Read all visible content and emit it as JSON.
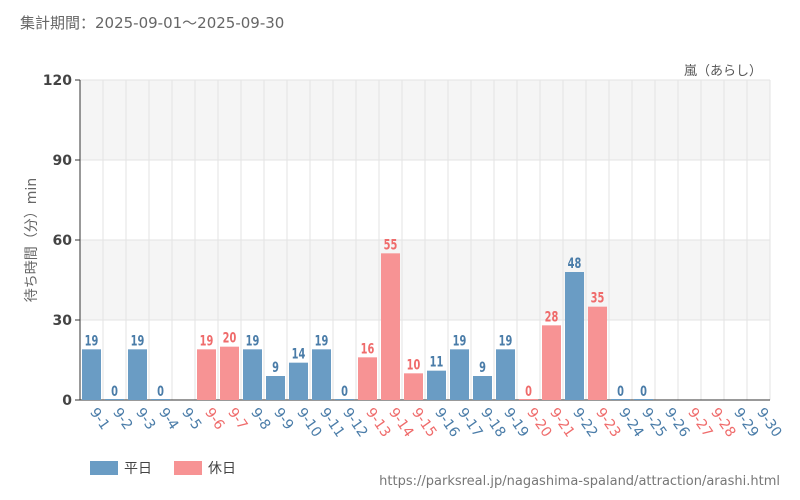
{
  "header": {
    "period": "集計期間：2025-09-01～2025-09-30",
    "attraction": "嵐（あらし）"
  },
  "footer": {
    "source_url": "https://parksreal.jp/nagashima-spaland/attraction/arashi.html"
  },
  "legend": [
    {
      "label": "平日",
      "color": "#6a9cc4"
    },
    {
      "label": "休日",
      "color": "#f79394"
    }
  ],
  "chart_data": {
    "type": "bar",
    "title": "",
    "ylabel": "待ち時間（分）min",
    "xlabel": "",
    "ylim": [
      0,
      120
    ],
    "yticks": [
      0,
      30,
      60,
      90,
      120
    ],
    "grid": true,
    "legend_position": "bottom-left",
    "categories": [
      "9-1",
      "9-2",
      "9-3",
      "9-4",
      "9-5",
      "9-6",
      "9-7",
      "9-8",
      "9-9",
      "9-10",
      "9-11",
      "9-12",
      "9-13",
      "9-14",
      "9-15",
      "9-16",
      "9-17",
      "9-18",
      "9-19",
      "9-20",
      "9-21",
      "9-22",
      "9-23",
      "9-24",
      "9-25",
      "9-26",
      "9-27",
      "9-28",
      "9-29",
      "9-30"
    ],
    "values": [
      19,
      0,
      19,
      0,
      null,
      19,
      20,
      19,
      9,
      14,
      19,
      0,
      16,
      55,
      10,
      11,
      19,
      9,
      19,
      0,
      28,
      48,
      35,
      0,
      0,
      null,
      null,
      null,
      null,
      null
    ],
    "day_type": [
      "平日",
      "平日",
      "平日",
      "平日",
      "平日",
      "休日",
      "休日",
      "平日",
      "平日",
      "平日",
      "平日",
      "平日",
      "休日",
      "休日",
      "休日",
      "平日",
      "平日",
      "平日",
      "平日",
      "休日",
      "休日",
      "平日",
      "休日",
      "平日",
      "平日",
      "平日",
      "休日",
      "休日",
      "平日",
      "平日"
    ],
    "colors": {
      "weekday_bar": "#6a9cc4",
      "holiday_bar": "#f79394",
      "weekday_text": "#4a7ca8",
      "holiday_text": "#ef6b6b",
      "band": "#f5f5f5",
      "grid": "#e3e3e3",
      "axis": "#333333"
    }
  }
}
